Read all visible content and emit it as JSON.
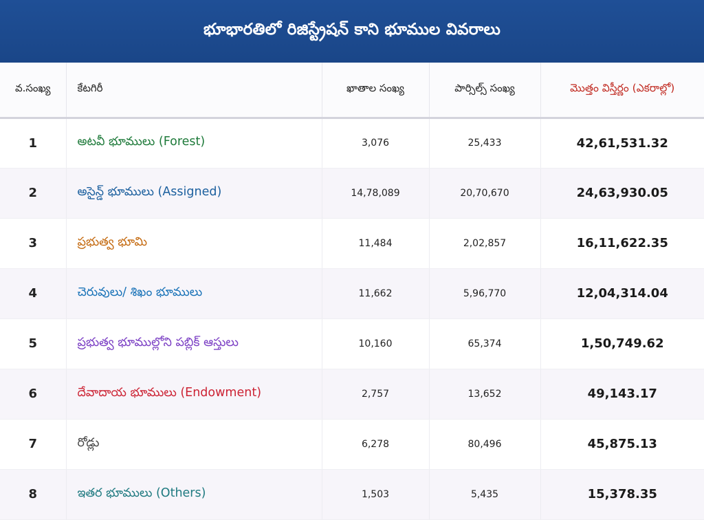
{
  "title": "భూభారతిలో రిజిస్ట్రేషన్ కాని భూముల వివరాలు",
  "headers": {
    "sno": "వ.సంఖ్య",
    "category": "కేటగిరీ",
    "khata_count": "ఖాతాల సంఖ్య",
    "parcel_count": "పార్సిల్స్ సంఖ్య",
    "total_area": "మొత్తం విస్తీర్ణం (ఎకరాల్లో)"
  },
  "colors": {
    "header_bg": "#1f4f96",
    "total_header": "#c0281f",
    "row_alt_bg": "#f7f5fa"
  },
  "rows": [
    {
      "sno": "1",
      "category": "అటవీ భూములు (Forest)",
      "color": "#1e7a3a",
      "khata": "3,076",
      "parcels": "25,433",
      "total": "42,61,531.32"
    },
    {
      "sno": "2",
      "category": "అసైన్డ్ భూములు (Assigned)",
      "color": "#1b5f9e",
      "khata": "14,78,089",
      "parcels": "20,70,670",
      "total": "24,63,930.05"
    },
    {
      "sno": "3",
      "category": "ప్రభుత్వ భూమి",
      "color": "#c46a10",
      "khata": "11,484",
      "parcels": "2,02,857",
      "total": "16,11,622.35"
    },
    {
      "sno": "4",
      "category": "చెరువులు/ శిఖం భూములు",
      "color": "#1a73b8",
      "khata": "11,662",
      "parcels": "5,96,770",
      "total": "12,04,314.04"
    },
    {
      "sno": "5",
      "category": "ప్రభుత్వ భూముల్లోని పబ్లిక్ ఆస్తులు",
      "color": "#7b3fc4",
      "khata": "10,160",
      "parcels": "65,374",
      "total": "1,50,749.62"
    },
    {
      "sno": "6",
      "category": "దేవాదాయ భూములు (Endowment)",
      "color": "#cc2233",
      "khata": "2,757",
      "parcels": "13,652",
      "total": "49,143.17"
    },
    {
      "sno": "7",
      "category": "రోడ్లు",
      "color": "#444444",
      "khata": "6,278",
      "parcels": "80,496",
      "total": "45,875.13"
    },
    {
      "sno": "8",
      "category": "ఇతర భూములు (Others)",
      "color": "#1f7a80",
      "khata": "1,503",
      "parcels": "5,435",
      "total": "15,378.35"
    }
  ]
}
